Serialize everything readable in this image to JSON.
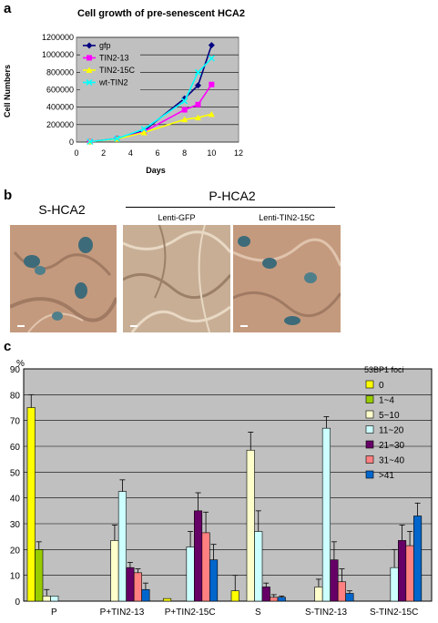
{
  "panel_a": {
    "letter": "a"
  },
  "panel_b": {
    "letter": "b",
    "label_s": "S-HCA2",
    "label_p": "P-HCA2",
    "label_gfp": "Lenti-GFP",
    "label_tin": "Lenti-TIN2-15C",
    "colors": {
      "tissue": "#c49a7e",
      "stain": "#3d6b79"
    }
  },
  "panel_c": {
    "letter": "c"
  },
  "chart_data": [
    {
      "type": "line",
      "title": "Cell growth of pre-senescent HCA2",
      "xlabel": "Days",
      "ylabel": "Cell Numbers",
      "xlim": [
        0,
        12
      ],
      "ylim": [
        0,
        1200000
      ],
      "xticks": [
        "0",
        "2",
        "4",
        "6",
        "8",
        "10",
        "12"
      ],
      "yticks": [
        "0",
        "200000",
        "400000",
        "600000",
        "800000",
        "1000000",
        "1200000"
      ],
      "grid": true,
      "legend_position": "top-left",
      "background": "#c0c0c0",
      "series": [
        {
          "name": "gfp",
          "color": "#000080",
          "marker": "diamond",
          "x": [
            1,
            3,
            5,
            8,
            9,
            10
          ],
          "y": [
            5000,
            40000,
            130000,
            500000,
            650000,
            1110000
          ]
        },
        {
          "name": "TIN2-13",
          "color": "#ff00ff",
          "marker": "square",
          "x": [
            1,
            3,
            5,
            8,
            9,
            10
          ],
          "y": [
            5000,
            35000,
            120000,
            370000,
            430000,
            660000
          ]
        },
        {
          "name": "TIN2-15C",
          "color": "#ffff00",
          "marker": "triangle",
          "x": [
            1,
            3,
            5,
            8,
            9,
            10
          ],
          "y": [
            5000,
            35000,
            110000,
            260000,
            280000,
            320000
          ]
        },
        {
          "name": "wt-TIN2",
          "color": "#00ffff",
          "marker": "x",
          "x": [
            1,
            3,
            5,
            8,
            9,
            10
          ],
          "y": [
            5000,
            40000,
            150000,
            470000,
            800000,
            960000
          ]
        }
      ]
    },
    {
      "type": "bar",
      "ylabel": "%",
      "ylim": [
        0,
        90
      ],
      "yticks": [
        "0",
        "10",
        "20",
        "30",
        "40",
        "50",
        "60",
        "70",
        "80",
        "90"
      ],
      "grid": true,
      "legend_title": "53BP1 foci",
      "legend_position": "top-right",
      "background": "#c0c0c0",
      "categories": [
        "P",
        "P+TIN2-13",
        "P+TIN2-15C",
        "S",
        "S-TIN2-13",
        "S-TIN2-15C"
      ],
      "series": [
        {
          "name": "0",
          "color": "#ffff00",
          "values": [
            75,
            0,
            1,
            4,
            0,
            0
          ],
          "errors": [
            5,
            0,
            0,
            6,
            0,
            0
          ]
        },
        {
          "name": "1~4",
          "color": "#99cc00",
          "values": [
            20,
            0,
            0,
            0,
            0,
            0
          ],
          "errors": [
            3,
            0,
            0,
            0,
            0,
            0
          ]
        },
        {
          "name": "5~10",
          "color": "#ffffcc",
          "values": [
            2,
            23.5,
            0,
            58.5,
            5.5,
            0
          ],
          "errors": [
            2.5,
            6,
            0,
            7,
            3,
            0
          ]
        },
        {
          "name": "11~20",
          "color": "#ccffff",
          "values": [
            2,
            42.5,
            21,
            27,
            67,
            13
          ],
          "errors": [
            0,
            4.5,
            6,
            8,
            4.5,
            7
          ]
        },
        {
          "name": "21~30",
          "color": "#660066",
          "values": [
            0,
            13,
            35,
            5.5,
            16,
            23.5
          ],
          "errors": [
            0,
            2,
            7,
            1.5,
            7,
            6
          ]
        },
        {
          "name": "31~40",
          "color": "#ff8080",
          "values": [
            0,
            11,
            26.5,
            1.5,
            7.5,
            21.5
          ],
          "errors": [
            0,
            1.5,
            8,
            1,
            5,
            5.5
          ]
        },
        {
          "name": ">41",
          "color": "#0066cc",
          "values": [
            0,
            4.5,
            16,
            1.5,
            3,
            33
          ],
          "errors": [
            0,
            2.5,
            6,
            0.5,
            1,
            5
          ]
        }
      ]
    }
  ]
}
